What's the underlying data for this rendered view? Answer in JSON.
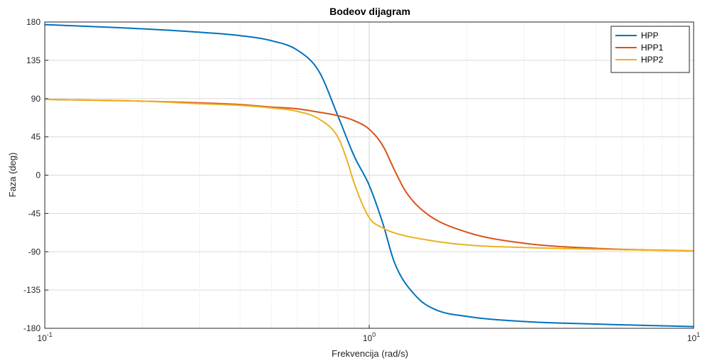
{
  "chart_data": {
    "type": "line",
    "title": "Bodeov dijagram",
    "xlabel": "Frekvencija  (rad/s)",
    "ylabel": "Faza (deg)",
    "xscale": "log",
    "xlim": [
      0.1,
      10
    ],
    "ylim": [
      -180,
      180
    ],
    "x_ticks": [
      {
        "value": 0.1,
        "base": "10",
        "exp": "-1"
      },
      {
        "value": 1,
        "base": "10",
        "exp": "0"
      },
      {
        "value": 10,
        "base": "10",
        "exp": "1"
      }
    ],
    "y_ticks": [
      {
        "value": 180,
        "label": "180"
      },
      {
        "value": 135,
        "label": "135"
      },
      {
        "value": 90,
        "label": "90"
      },
      {
        "value": 45,
        "label": "45"
      },
      {
        "value": 0,
        "label": "0"
      },
      {
        "value": -45,
        "label": "-45"
      },
      {
        "value": -90,
        "label": "-90"
      },
      {
        "value": -135,
        "label": "-135"
      },
      {
        "value": -180,
        "label": "-180"
      }
    ],
    "grid": true,
    "legend_position": "top-right",
    "series": [
      {
        "name": "HPP",
        "color": "#0072BD",
        "x": [
          0.1,
          0.2,
          0.3,
          0.4,
          0.5,
          0.6,
          0.7,
          0.8,
          0.9,
          1.0,
          1.1,
          1.2,
          1.4,
          1.6,
          2,
          3,
          5,
          10
        ],
        "y": [
          177,
          172,
          168,
          164,
          158,
          147,
          122,
          70,
          22,
          -12,
          -56,
          -104,
          -143,
          -158,
          -166,
          -172,
          -175,
          -178
        ]
      },
      {
        "name": "HPP1",
        "color": "#D95319",
        "x": [
          0.1,
          0.2,
          0.3,
          0.4,
          0.5,
          0.6,
          0.7,
          0.8,
          0.9,
          1.0,
          1.1,
          1.2,
          1.3,
          1.5,
          2,
          3,
          5,
          10
        ],
        "y": [
          89,
          87,
          85,
          83,
          80,
          78,
          74,
          70,
          64,
          54,
          35,
          5,
          -20,
          -45,
          -67,
          -80,
          -86,
          -89
        ]
      },
      {
        "name": "HPP2",
        "color": "#EDB120",
        "x": [
          0.1,
          0.2,
          0.3,
          0.4,
          0.5,
          0.6,
          0.7,
          0.8,
          0.85,
          0.9,
          1.0,
          1.1,
          1.2,
          1.5,
          2,
          3,
          5,
          10
        ],
        "y": [
          89,
          87,
          84,
          82,
          79,
          75,
          66,
          45,
          20,
          -10,
          -50,
          -62,
          -68,
          -76,
          -82,
          -85,
          -87,
          -89
        ]
      }
    ]
  }
}
